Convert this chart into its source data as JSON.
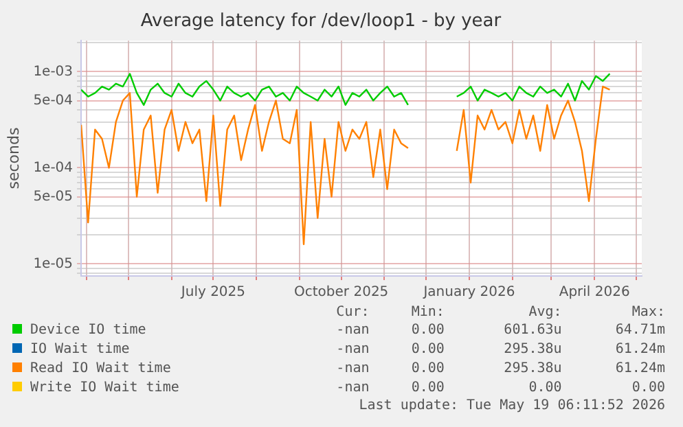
{
  "chart_data": {
    "type": "line",
    "title": "Average latency for /dev/loop1 - by year",
    "ylabel": "seconds",
    "log": "y",
    "grid": true,
    "legend": "bottom",
    "marker": "none",
    "line_style": "solid",
    "x": [
      "2025-03-28",
      "2025-04-02",
      "2025-04-07",
      "2025-04-12",
      "2025-04-17",
      "2025-04-22",
      "2025-04-27",
      "2025-05-02",
      "2025-05-07",
      "2025-05-12",
      "2025-05-17",
      "2025-05-22",
      "2025-05-27",
      "2025-06-01",
      "2025-06-06",
      "2025-06-11",
      "2025-06-16",
      "2025-06-21",
      "2025-06-26",
      "2025-07-01",
      "2025-07-06",
      "2025-07-11",
      "2025-07-16",
      "2025-07-21",
      "2025-07-26",
      "2025-07-31",
      "2025-08-05",
      "2025-08-10",
      "2025-08-15",
      "2025-08-20",
      "2025-08-25",
      "2025-08-30",
      "2025-09-04",
      "2025-09-09",
      "2025-09-14",
      "2025-09-19",
      "2025-09-24",
      "2025-09-29",
      "2025-10-04",
      "2025-10-09",
      "2025-10-14",
      "2025-10-19",
      "2025-10-24",
      "2025-10-29",
      "2025-11-03",
      "2025-11-08",
      "2025-11-13",
      "2025-11-18",
      "2025-12-08",
      "2025-12-23",
      "2025-12-28",
      "2026-01-02",
      "2026-01-07",
      "2026-01-12",
      "2026-01-17",
      "2026-01-22",
      "2026-01-27",
      "2026-02-01",
      "2026-02-06",
      "2026-02-11",
      "2026-02-16",
      "2026-02-21",
      "2026-02-26",
      "2026-03-03",
      "2026-03-08",
      "2026-03-13",
      "2026-03-18",
      "2026-03-23",
      "2026-03-28",
      "2026-04-02",
      "2026-04-07",
      "2026-04-12"
    ],
    "series": [
      {
        "name": "Device IO time",
        "color": "#00cc00",
        "values": [
          0.00065,
          0.00055,
          0.0006,
          0.0007,
          0.00065,
          0.00075,
          0.0007,
          0.00095,
          0.0006,
          0.00045,
          0.00065,
          0.00075,
          0.0006,
          0.00055,
          0.00075,
          0.0006,
          0.00055,
          0.0007,
          0.0008,
          0.00065,
          0.0005,
          0.0007,
          0.0006,
          0.00055,
          0.0006,
          0.0005,
          0.00065,
          0.0007,
          0.00055,
          0.0006,
          0.0005,
          0.0007,
          0.0006,
          0.00055,
          0.0005,
          0.00065,
          0.00055,
          0.0007,
          0.00045,
          0.0006,
          0.00055,
          0.00065,
          0.0005,
          0.0006,
          0.0007,
          0.00055,
          0.0006,
          0.00045,
          null,
          0.00055,
          0.0006,
          0.0007,
          0.0005,
          0.00065,
          0.0006,
          0.00055,
          0.0006,
          0.0005,
          0.0007,
          0.0006,
          0.00055,
          0.0007,
          0.0006,
          0.00065,
          0.00055,
          0.00075,
          0.0005,
          0.0008,
          0.00065,
          0.0009,
          0.0008,
          0.00095
        ]
      },
      {
        "name": "IO Wait time",
        "color": "#0066b3",
        "values": [
          null,
          null,
          null,
          null,
          null,
          null,
          null,
          null,
          null,
          null,
          null,
          null,
          null,
          null,
          null,
          null,
          null,
          null,
          null,
          null,
          null,
          null,
          null,
          null,
          null,
          null,
          null,
          null,
          null,
          null,
          null,
          null,
          null,
          null,
          null,
          null,
          null,
          null,
          null,
          null,
          null,
          null,
          null,
          null,
          null,
          null,
          null,
          null,
          null,
          null,
          null,
          null,
          null,
          null,
          null,
          null,
          null,
          null,
          null,
          null,
          null,
          null,
          null,
          null,
          null,
          null,
          null,
          null,
          null,
          null,
          null,
          null
        ]
      },
      {
        "name": "Read IO Wait time",
        "color": "#ff8000",
        "values": [
          0.00028,
          2.7e-05,
          0.00025,
          0.0002,
          0.0001,
          0.0003,
          0.0005,
          0.0006,
          5e-05,
          0.00025,
          0.00035,
          5.5e-05,
          0.00025,
          0.0004,
          0.00015,
          0.0003,
          0.00018,
          0.00025,
          4.5e-05,
          0.00035,
          4e-05,
          0.00025,
          0.00035,
          0.00012,
          0.00025,
          0.00045,
          0.00015,
          0.0003,
          0.0005,
          0.0002,
          0.00018,
          0.0004,
          1.6e-05,
          0.0003,
          3e-05,
          0.0002,
          5e-05,
          0.0003,
          0.00015,
          0.00025,
          0.0002,
          0.0003,
          8e-05,
          0.00025,
          6e-05,
          0.00025,
          0.00018,
          0.00016,
          null,
          0.00015,
          0.0004,
          7e-05,
          0.00035,
          0.00025,
          0.0004,
          0.00025,
          0.0003,
          0.00018,
          0.0004,
          0.0002,
          0.00035,
          0.00015,
          0.00045,
          0.0002,
          0.00035,
          0.0005,
          0.0003,
          0.00015,
          4.5e-05,
          0.0002,
          0.0007,
          0.00065
        ]
      },
      {
        "name": "Write IO Wait time",
        "color": "#ffcc00",
        "values": [
          null,
          null,
          null,
          null,
          null,
          null,
          null,
          null,
          null,
          null,
          null,
          null,
          null,
          null,
          null,
          null,
          null,
          null,
          null,
          null,
          null,
          null,
          null,
          null,
          null,
          null,
          null,
          null,
          null,
          null,
          null,
          null,
          null,
          null,
          null,
          null,
          null,
          null,
          null,
          null,
          null,
          null,
          null,
          null,
          null,
          null,
          null,
          null,
          null,
          null,
          null,
          null,
          null,
          null,
          null,
          null,
          null,
          null,
          null,
          null,
          null,
          null,
          null,
          null,
          null,
          null,
          null,
          null,
          null,
          null,
          null,
          null
        ]
      }
    ],
    "xlim": [
      "2025-03-28",
      "2026-05-05"
    ],
    "xticks": [
      {
        "value": "2025-04-01",
        "label": null
      },
      {
        "value": "2025-05-01",
        "label": null
      },
      {
        "value": "2025-06-01",
        "label": null
      },
      {
        "value": "2025-07-01",
        "label": "July 2025"
      },
      {
        "value": "2025-08-01",
        "label": null
      },
      {
        "value": "2025-09-01",
        "label": null
      },
      {
        "value": "2025-10-01",
        "label": "October 2025"
      },
      {
        "value": "2025-11-01",
        "label": null
      },
      {
        "value": "2025-12-01",
        "label": null
      },
      {
        "value": "2026-01-01",
        "label": "January 2026"
      },
      {
        "value": "2026-02-01",
        "label": null
      },
      {
        "value": "2026-03-01",
        "label": null
      },
      {
        "value": "2026-04-01",
        "label": "April 2026"
      },
      {
        "value": "2026-05-01",
        "label": null
      }
    ],
    "ylim": [
      7.5e-06,
      0.0021
    ],
    "yticks": [
      {
        "value": 8e-06,
        "label": null
      },
      {
        "value": 9e-06,
        "label": null
      },
      {
        "value": 1e-05,
        "label": "1e-05"
      },
      {
        "value": 2e-05,
        "label": null
      },
      {
        "value": 3e-05,
        "label": null
      },
      {
        "value": 4e-05,
        "label": null
      },
      {
        "value": 5e-05,
        "label": "5e-05"
      },
      {
        "value": 6e-05,
        "label": null
      },
      {
        "value": 7e-05,
        "label": null
      },
      {
        "value": 8e-05,
        "label": null
      },
      {
        "value": 9e-05,
        "label": null
      },
      {
        "value": 0.0001,
        "label": "1e-04"
      },
      {
        "value": 0.0002,
        "label": null
      },
      {
        "value": 0.0003,
        "label": null
      },
      {
        "value": 0.0004,
        "label": null
      },
      {
        "value": 0.0005,
        "label": "5e-04"
      },
      {
        "value": 0.0006,
        "label": null
      },
      {
        "value": 0.0007,
        "label": null
      },
      {
        "value": 0.0008,
        "label": null
      },
      {
        "value": 0.0009,
        "label": null
      },
      {
        "value": 0.001,
        "label": "1e-03"
      },
      {
        "value": 0.002,
        "label": null
      }
    ],
    "annotations": [
      "Cur:",
      "Min:",
      "Avg:",
      "Max:",
      "-nan",
      "0.00",
      "601.63u",
      "64.71m",
      "-nan",
      "0.00",
      "295.38u",
      "61.24m",
      "-nan",
      "0.00",
      "295.38u",
      "61.24m",
      "-nan",
      "0.00",
      "0.00",
      "0.00",
      "Last update: Tue May 19 06:11:52 2026"
    ]
  }
}
